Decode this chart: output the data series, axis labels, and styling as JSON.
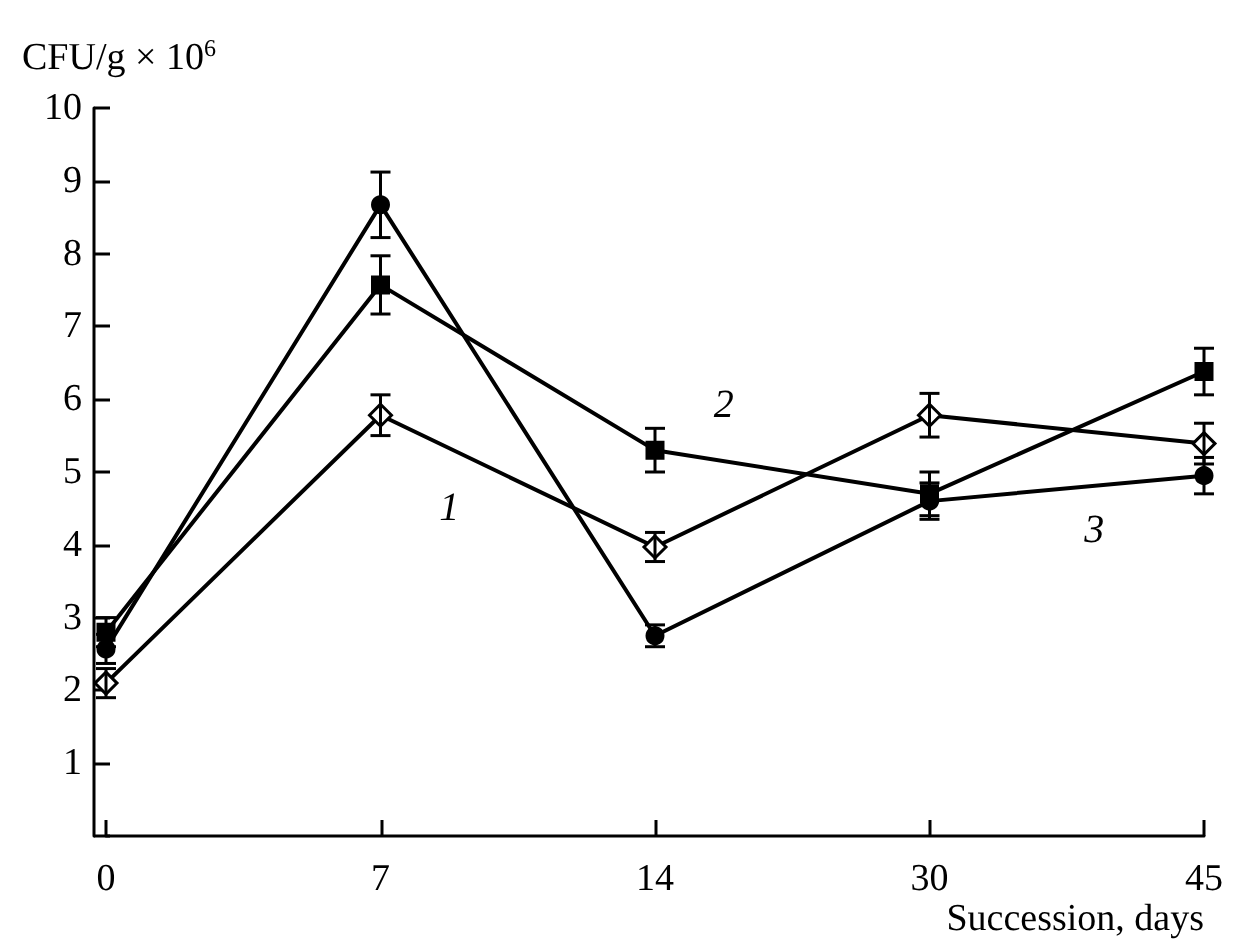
{
  "chart_data": {
    "type": "line",
    "ylabel": "CFU/g × 10$^{6}$",
    "xlabel": "Succession, days",
    "categories": [
      "0",
      "7",
      "14",
      "30",
      "45"
    ],
    "ylim": [
      0,
      10
    ],
    "yticks": [
      {
        "value": 0,
        "label": null
      },
      1,
      2,
      3,
      4,
      5,
      6,
      7,
      8,
      9,
      10
    ],
    "grid": false,
    "legend": false,
    "line_style": "solid",
    "series": [
      {
        "name": "1",
        "color": "#000000",
        "marker": "diamond",
        "values": [
          2.1,
          5.78,
          3.97,
          5.78,
          5.39
        ],
        "errors": [
          0.2,
          0.28,
          0.2,
          0.3,
          0.28
        ]
      },
      {
        "name": "2",
        "color": "#000000",
        "marker": "square",
        "values": [
          2.8,
          7.57,
          5.3,
          4.7,
          6.38
        ],
        "errors": [
          0.2,
          0.4,
          0.3,
          0.3,
          0.32
        ]
      },
      {
        "name": "3",
        "color": "#000000",
        "marker": "circle",
        "values": [
          2.57,
          8.67,
          2.75,
          4.6,
          4.95
        ],
        "errors": [
          0.2,
          0.45,
          0.15,
          0.25,
          0.25
        ]
      }
    ]
  }
}
